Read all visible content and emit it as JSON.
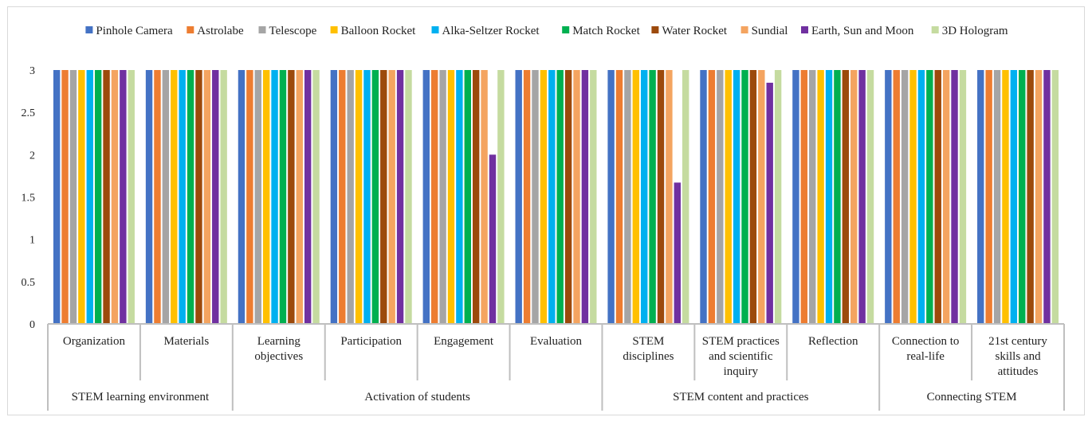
{
  "chart_data": {
    "type": "bar",
    "title": "",
    "xlabel": "",
    "ylabel": "",
    "ylim": [
      0,
      3
    ],
    "yticks": [
      "0",
      "0.5",
      "1",
      "1.5",
      "2",
      "2.5",
      "3"
    ],
    "legend_position": "top",
    "grid": false,
    "categories": [
      [
        "Organization"
      ],
      [
        "Materials"
      ],
      [
        "Learning",
        "objectives"
      ],
      [
        "Participation"
      ],
      [
        "Engagement"
      ],
      [
        "Evaluation"
      ],
      [
        "STEM",
        "disciplines"
      ],
      [
        "STEM practices",
        "and scientific",
        "inquiry"
      ],
      [
        "Reflection"
      ],
      [
        "Connection to",
        "real-life"
      ],
      [
        "21st century",
        "skills and",
        "attitudes"
      ]
    ],
    "groups": [
      {
        "label": "STEM learning environment",
        "span": [
          0,
          1
        ]
      },
      {
        "label": "Activation of students",
        "span": [
          2,
          5
        ]
      },
      {
        "label": "STEM content and practices",
        "span": [
          6,
          8
        ]
      },
      {
        "label": "Connecting STEM",
        "span": [
          9,
          10
        ]
      }
    ],
    "series": [
      {
        "name": "Pinhole Camera",
        "color": "#4472C4",
        "values": [
          3,
          3,
          3,
          3,
          3,
          3,
          3,
          3,
          3,
          3,
          3
        ]
      },
      {
        "name": "Astrolabe",
        "color": "#ED7D31",
        "values": [
          3,
          3,
          3,
          3,
          3,
          3,
          3,
          3,
          3,
          3,
          3
        ]
      },
      {
        "name": "Telescope",
        "color": "#A5A5A5",
        "values": [
          3,
          3,
          3,
          3,
          3,
          3,
          3,
          3,
          3,
          3,
          3
        ]
      },
      {
        "name": "Balloon Rocket",
        "color": "#FFC000",
        "values": [
          3,
          3,
          3,
          3,
          3,
          3,
          3,
          3,
          3,
          3,
          3
        ]
      },
      {
        "name": "Alka-Seltzer Rocket",
        "color": "#00B0F0",
        "values": [
          3,
          3,
          3,
          3,
          3,
          3,
          3,
          3,
          3,
          3,
          3
        ]
      },
      {
        "name": "Match Rocket",
        "color": "#00B050",
        "values": [
          3,
          3,
          3,
          3,
          3,
          3,
          3,
          3,
          3,
          3,
          3
        ]
      },
      {
        "name": "Water Rocket",
        "color": "#9C4A0C",
        "values": [
          3,
          3,
          3,
          3,
          3,
          3,
          3,
          3,
          3,
          3,
          3
        ]
      },
      {
        "name": "Sundial",
        "color": "#F4A460",
        "values": [
          3,
          3,
          3,
          3,
          3,
          3,
          3,
          3,
          3,
          3,
          3
        ]
      },
      {
        "name": "Earth, Sun and Moon",
        "color": "#7030A0",
        "values": [
          3,
          3,
          3,
          3,
          2,
          3,
          1.67,
          2.85,
          3,
          3,
          3
        ]
      },
      {
        "name": "3D Hologram",
        "color": "#C5DBA0",
        "values": [
          3,
          3,
          3,
          3,
          3,
          3,
          3,
          3,
          3,
          3,
          3
        ]
      }
    ]
  }
}
